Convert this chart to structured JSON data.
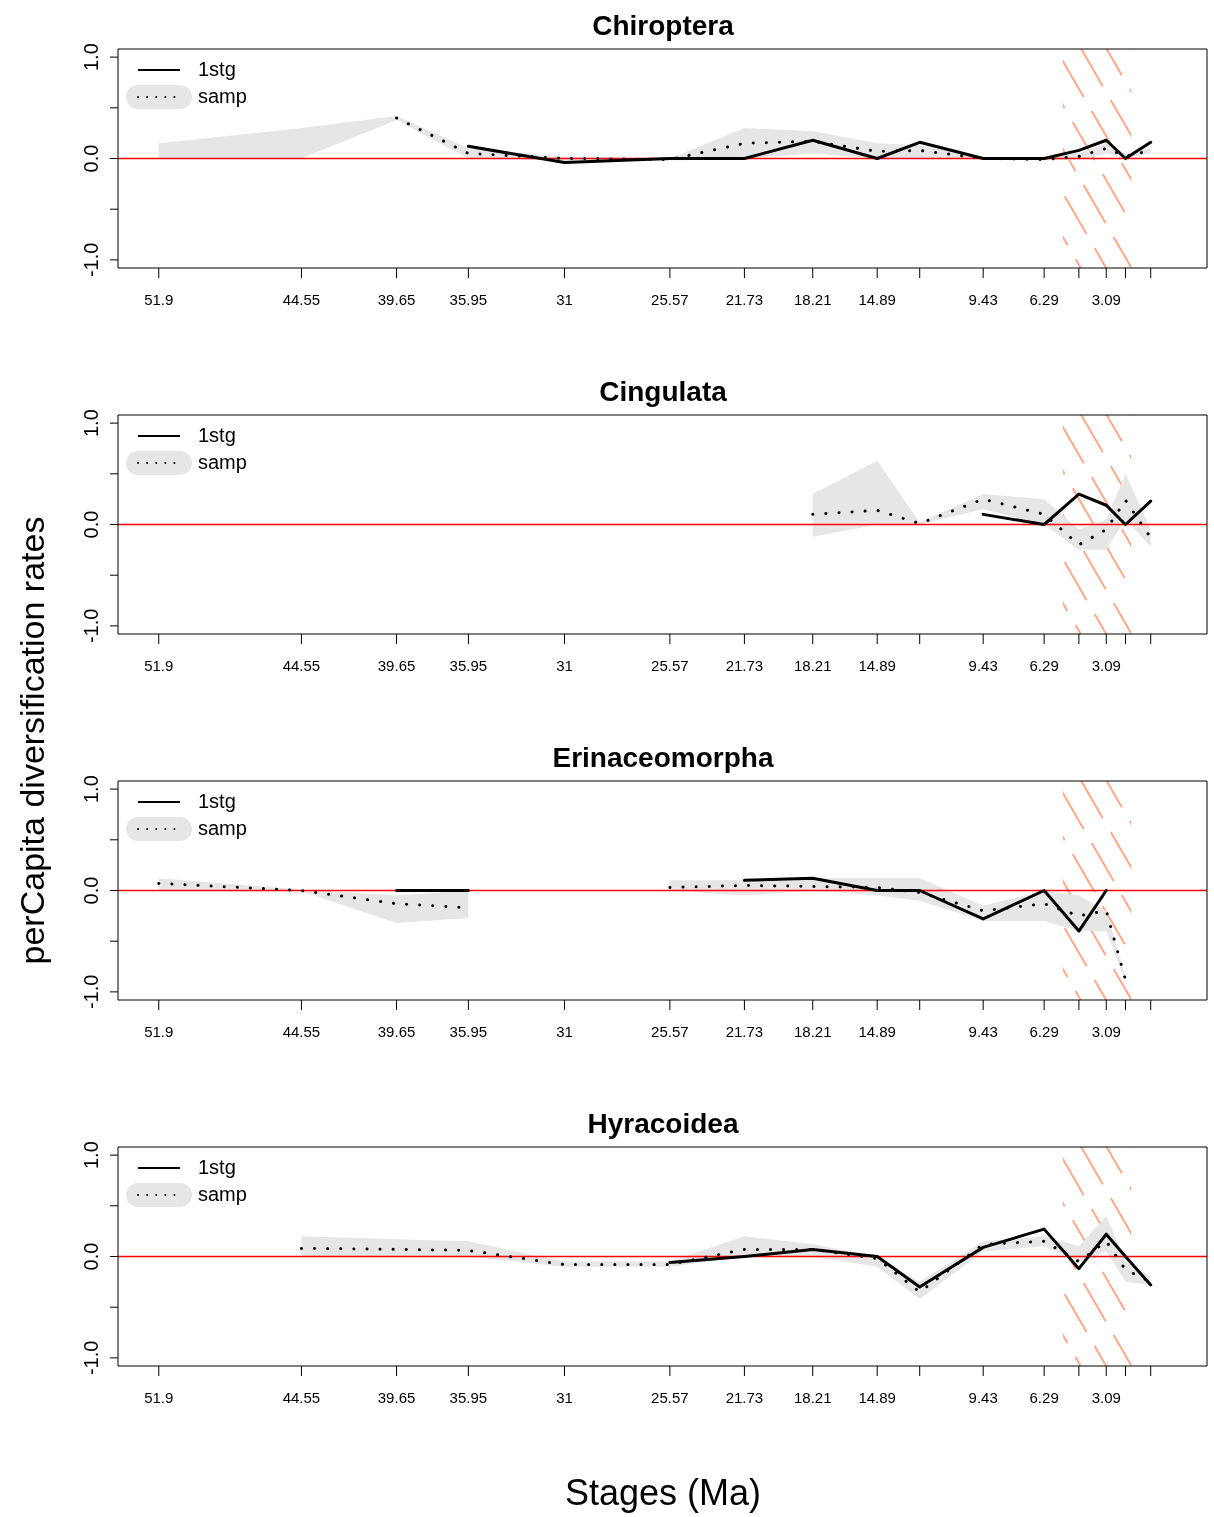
{
  "chart_data": [
    {
      "type": "line",
      "title": "Chiroptera",
      "legend": "top left",
      "x": [
        51.9,
        44.55,
        39.65,
        35.95,
        31,
        25.57,
        21.73,
        18.21,
        14.89,
        12.7,
        9.43,
        6.29,
        4.5,
        3.09,
        2.1,
        0.8
      ],
      "xlim": [
        54,
        -2.1
      ],
      "xticks": [
        51.9,
        44.55,
        39.65,
        35.95,
        31,
        25.57,
        21.73,
        18.21,
        14.89,
        {
          "value": 12.7,
          "label": null
        },
        9.43,
        6.29,
        {
          "value": 4.5,
          "label": null
        },
        3.09,
        {
          "value": 2.1,
          "label": null
        },
        {
          "value": 0.8,
          "label": null
        }
      ],
      "ylim": [
        -1.08,
        1.08
      ],
      "yticks": [
        {
          "value": -1,
          "label": "-1.0"
        },
        {
          "value": -0.5,
          "label": null
        },
        {
          "value": 0,
          "label": "0.0"
        },
        {
          "value": 0.5,
          "label": null
        },
        {
          "value": 1,
          "label": "1.0"
        }
      ],
      "ref_lines": [
        {
          "axis": "y",
          "value": 0,
          "color": "#ff0000"
        }
      ],
      "bands": [
        {
          "axis": "x",
          "from": 5.33,
          "to": 1.8,
          "color": "#ff9f7a"
        }
      ],
      "series": [
        {
          "name": "1stg",
          "color": "#000000",
          "line_style": "solid",
          "values": [
            null,
            null,
            null,
            0.12,
            -0.04,
            0,
            0,
            0.18,
            0,
            0.16,
            0,
            0,
            0.08,
            0.18,
            0,
            0.16
          ]
        },
        {
          "name": "samp",
          "color": "#000000",
          "line_style": "dotted",
          "values": [
            null,
            null,
            0.4,
            0.05,
            0,
            -0.01,
            0.15,
            0.17,
            0.07,
            0.08,
            0,
            -0.01,
            0.02,
            0.1,
            0.02,
            0.08
          ],
          "lower": [
            0,
            0,
            0.38,
            0,
            -0.02,
            -0.02,
            0,
            0.05,
            0,
            0,
            -0.01,
            -0.02,
            -0.01,
            0.05,
            0,
            0.05
          ],
          "upper": [
            0.15,
            0.3,
            0.42,
            0.1,
            0.02,
            0,
            0.3,
            0.27,
            0.15,
            0.13,
            0.01,
            0.01,
            0.05,
            0.15,
            0.05,
            0.1
          ]
        }
      ]
    },
    {
      "type": "line",
      "title": "Cingulata",
      "ylabel": "perCapita diversification rates",
      "legend": "top left",
      "x": [
        18.21,
        14.89,
        12.7,
        9.43,
        6.29,
        4.5,
        3.09,
        2.1,
        0.8
      ],
      "xlim": [
        54,
        -2.1
      ],
      "xticks": [
        51.9,
        44.55,
        39.65,
        35.95,
        31,
        25.57,
        21.73,
        18.21,
        14.89,
        {
          "value": 12.7,
          "label": null
        },
        9.43,
        6.29,
        {
          "value": 4.5,
          "label": null
        },
        3.09,
        {
          "value": 2.1,
          "label": null
        },
        {
          "value": 0.8,
          "label": null
        }
      ],
      "ylim": [
        -1.08,
        1.08
      ],
      "yticks": [
        {
          "value": -1,
          "label": "-1.0"
        },
        {
          "value": -0.5,
          "label": null
        },
        {
          "value": 0,
          "label": "0.0"
        },
        {
          "value": 0.5,
          "label": null
        },
        {
          "value": 1,
          "label": "1.0"
        }
      ],
      "ref_lines": [
        {
          "axis": "y",
          "value": 0,
          "color": "#ff0000"
        }
      ],
      "bands": [
        {
          "axis": "x",
          "from": 5.33,
          "to": 1.8,
          "color": "#ff9f7a"
        }
      ],
      "series": [
        {
          "name": "1stg",
          "color": "#000000",
          "line_style": "solid",
          "values": [
            null,
            null,
            null,
            0.1,
            0,
            0.3,
            0.19,
            0,
            0.23
          ]
        },
        {
          "name": "samp",
          "color": "#000000",
          "line_style": "dotted",
          "values": [
            0.1,
            0.14,
            0.01,
            0.25,
            0.1,
            -0.2,
            -0.05,
            0.24,
            -0.13
          ],
          "lower": [
            -0.12,
            0,
            0,
            0.15,
            0,
            -0.25,
            -0.25,
            0.05,
            -0.22
          ],
          "upper": [
            0.3,
            0.63,
            0.02,
            0.3,
            0.25,
            -0.05,
            0.05,
            0.5,
            -0.05
          ]
        }
      ]
    },
    {
      "type": "line",
      "title": "Erinaceomorpha",
      "legend": "top left",
      "x": [
        51.9,
        44.55,
        39.65,
        35.95,
        31,
        25.57,
        21.73,
        18.21,
        14.89,
        12.7,
        9.43,
        6.29,
        4.5,
        3.09,
        2.1
      ],
      "xlim": [
        54,
        -2.1
      ],
      "xticks": [
        51.9,
        44.55,
        39.65,
        35.95,
        31,
        25.57,
        21.73,
        18.21,
        14.89,
        {
          "value": 12.7,
          "label": null
        },
        9.43,
        6.29,
        {
          "value": 4.5,
          "label": null
        },
        3.09,
        {
          "value": 2.1,
          "label": null
        },
        {
          "value": 0.8,
          "label": null
        }
      ],
      "ylim": [
        -1.08,
        1.08
      ],
      "yticks": [
        {
          "value": -1,
          "label": "-1.0"
        },
        {
          "value": -0.5,
          "label": null
        },
        {
          "value": 0,
          "label": "0.0"
        },
        {
          "value": 0.5,
          "label": null
        },
        {
          "value": 1,
          "label": "1.0"
        }
      ],
      "ref_lines": [
        {
          "axis": "y",
          "value": 0,
          "color": "#ff0000"
        }
      ],
      "bands": [
        {
          "axis": "x",
          "from": 5.33,
          "to": 1.8,
          "color": "#ff9f7a"
        }
      ],
      "series": [
        {
          "name": "1stg",
          "color": "#000000",
          "line_style": "solid",
          "values": [
            null,
            null,
            0,
            0,
            null,
            null,
            0.1,
            0.12,
            0,
            0,
            -0.28,
            0,
            -0.4,
            0,
            null
          ]
        },
        {
          "name": "samp",
          "color": "#000000",
          "line_style": "dotted",
          "values": [
            0.07,
            0,
            -0.13,
            -0.17,
            null,
            0.03,
            0.05,
            0.04,
            0.03,
            -0.02,
            -0.2,
            -0.13,
            -0.25,
            -0.2,
            -0.88
          ],
          "lower": [
            0,
            -0.01,
            -0.32,
            -0.27,
            null,
            0,
            -0.05,
            0,
            -0.05,
            -0.1,
            -0.3,
            -0.3,
            -0.4,
            -0.4,
            -0.9
          ],
          "upper": [
            0.12,
            0.01,
            -0.05,
            0,
            null,
            0.1,
            0.1,
            0.12,
            0.12,
            0.12,
            -0.15,
            0,
            -0.05,
            -0.2,
            -0.85
          ]
        }
      ]
    },
    {
      "type": "line",
      "title": "Hyracoidea",
      "xlabel": "Stages (Ma)",
      "legend": "top left",
      "x": [
        44.55,
        39.65,
        35.95,
        31,
        25.57,
        21.73,
        18.21,
        14.89,
        12.7,
        9.43,
        6.29,
        4.5,
        3.09,
        2.1,
        0.8
      ],
      "xlim": [
        54,
        -2.1
      ],
      "xticks": [
        51.9,
        44.55,
        39.65,
        35.95,
        31,
        25.57,
        21.73,
        18.21,
        14.89,
        {
          "value": 12.7,
          "label": null
        },
        9.43,
        6.29,
        {
          "value": 4.5,
          "label": null
        },
        3.09,
        {
          "value": 2.1,
          "label": null
        },
        {
          "value": 0.8,
          "label": null
        }
      ],
      "ylim": [
        -1.08,
        1.08
      ],
      "yticks": [
        {
          "value": -1,
          "label": "-1.0"
        },
        {
          "value": -0.5,
          "label": null
        },
        {
          "value": 0,
          "label": "0.0"
        },
        {
          "value": 0.5,
          "label": null
        },
        {
          "value": 1,
          "label": "1.0"
        }
      ],
      "ref_lines": [
        {
          "axis": "y",
          "value": 0,
          "color": "#ff0000"
        }
      ],
      "bands": [
        {
          "axis": "x",
          "from": 5.33,
          "to": 1.8,
          "color": "#ff9f7a"
        }
      ],
      "series": [
        {
          "name": "1stg",
          "color": "#000000",
          "line_style": "solid",
          "values": [
            null,
            null,
            null,
            null,
            -0.06,
            0,
            0.07,
            0,
            -0.3,
            0.09,
            0.27,
            -0.12,
            0.22,
            0,
            -0.28
          ]
        },
        {
          "name": "samp",
          "color": "#000000",
          "line_style": "dotted",
          "values": [
            0.08,
            0.07,
            0.06,
            -0.08,
            -0.08,
            0.07,
            0.07,
            -0.02,
            -0.35,
            0.12,
            0.15,
            -0.05,
            0.15,
            -0.13,
            -0.25
          ],
          "lower": [
            0,
            0,
            0,
            -0.1,
            -0.1,
            0,
            0,
            -0.1,
            -0.42,
            0.05,
            0.1,
            -0.05,
            0.05,
            -0.25,
            -0.28
          ],
          "upper": [
            0.2,
            0.17,
            0.15,
            -0.05,
            -0.05,
            0.2,
            0.12,
            0,
            -0.25,
            0.15,
            0.2,
            0.1,
            0.4,
            -0.05,
            -0.2
          ]
        }
      ]
    }
  ]
}
